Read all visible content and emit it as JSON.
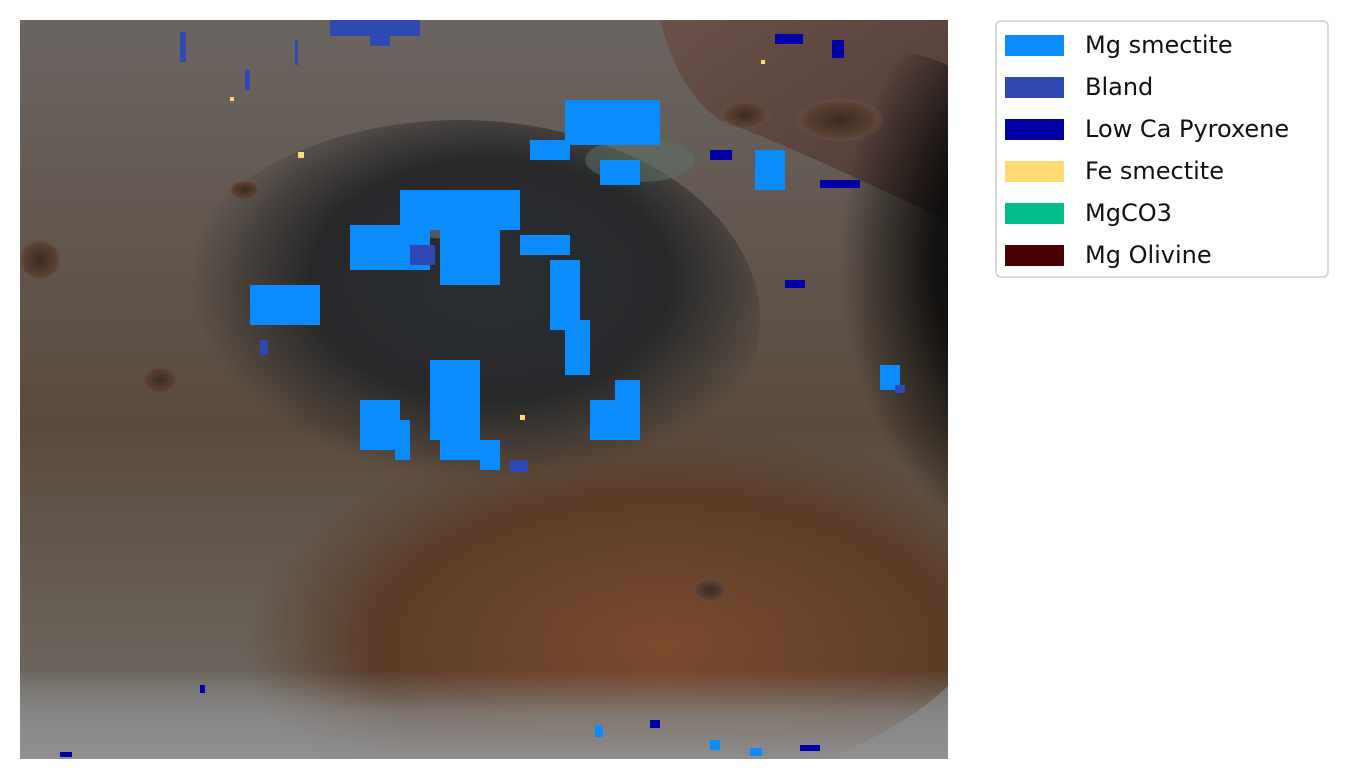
{
  "figure": {
    "type": "mineral-map-overlay",
    "description_visible": "false-color orbital image of a crater with mineral detections overlaid"
  },
  "legend": {
    "entries": [
      {
        "label": "Mg smectite",
        "color": "#0a8cff"
      },
      {
        "label": "Bland",
        "color": "#2f48b4"
      },
      {
        "label": "Low Ca Pyroxene",
        "color": "#0000a6"
      },
      {
        "label": "Fe smectite",
        "color": "#ffd974"
      },
      {
        "label": "MgCO3",
        "color": "#00bd8c"
      },
      {
        "label": "Mg Olivine",
        "color": "#4a0000"
      }
    ]
  }
}
